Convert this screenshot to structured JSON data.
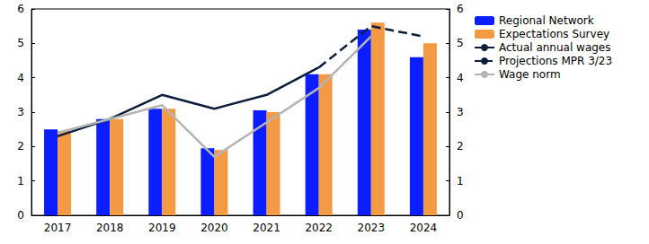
{
  "chart_data": {
    "type": "bar",
    "categories": [
      "2017",
      "2018",
      "2019",
      "2020",
      "2021",
      "2022",
      "2023",
      "2024"
    ],
    "series": [
      {
        "name": "Regional Network",
        "type": "bar",
        "color": "#0a1eff",
        "values": [
          2.5,
          2.8,
          3.1,
          1.95,
          3.05,
          4.1,
          5.4,
          4.6
        ]
      },
      {
        "name": "Expectations Survey",
        "type": "bar",
        "color": "#f39a45",
        "values": [
          2.45,
          2.8,
          3.1,
          1.9,
          3.0,
          4.1,
          5.6,
          5.0
        ]
      },
      {
        "name": "Actual annual wages",
        "type": "line",
        "color": "#0c1e3c",
        "line_style": "solid",
        "marker": "none",
        "values": [
          2.3,
          2.8,
          3.5,
          3.1,
          3.5,
          4.3,
          null,
          null
        ]
      },
      {
        "name": "Projections MPR 3/23",
        "type": "line",
        "color": "#0c1e3c",
        "line_style": "dashed",
        "marker": "none",
        "values": [
          null,
          null,
          null,
          null,
          null,
          4.3,
          5.5,
          5.2
        ]
      },
      {
        "name": "Wage norm",
        "type": "line",
        "color": "#b4b4b4",
        "line_style": "solid",
        "marker": "none",
        "values": [
          2.4,
          2.8,
          3.2,
          1.7,
          2.7,
          3.7,
          5.2,
          null
        ]
      }
    ],
    "ylim": [
      0,
      6
    ],
    "yticks": [
      0,
      1,
      2,
      3,
      4,
      5,
      6
    ],
    "y2lim": [
      0,
      6
    ],
    "y2ticks": [
      0,
      1,
      2,
      3,
      4,
      5,
      6
    ],
    "grid": false,
    "legend": "right"
  }
}
